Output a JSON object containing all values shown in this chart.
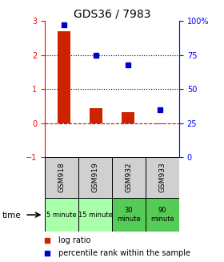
{
  "title": "GDS36 / 7983",
  "categories": [
    "GSM918",
    "GSM919",
    "GSM932",
    "GSM933"
  ],
  "time_labels": [
    "5 minute",
    "15 minute",
    "30\nminute",
    "90\nminute"
  ],
  "time_colors": [
    "#aaffaa",
    "#aaffaa",
    "#55cc55",
    "#55cc55"
  ],
  "log_ratios": [
    2.7,
    0.45,
    0.32,
    -0.03
  ],
  "percentile_ranks": [
    97,
    75,
    68,
    35
  ],
  "ylim_left": [
    -1,
    3
  ],
  "ylim_right": [
    0,
    100
  ],
  "yticks_left": [
    -1,
    0,
    1,
    2,
    3
  ],
  "yticks_right": [
    0,
    25,
    50,
    75,
    100
  ],
  "bar_color": "#cc2200",
  "dot_color": "#0000cc",
  "hline_color": "#cc0000",
  "dotted_line_color": "#000000",
  "title_fontsize": 10,
  "tick_fontsize": 7,
  "bar_width": 0.4
}
